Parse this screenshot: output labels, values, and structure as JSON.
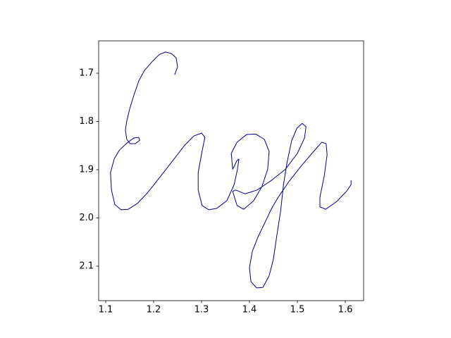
{
  "chart_data": {
    "type": "line",
    "color": "#00008b",
    "x": [
      1.244,
      1.25,
      1.247,
      1.237,
      1.225,
      1.212,
      1.196,
      1.181,
      1.169,
      1.159,
      1.15,
      1.144,
      1.141,
      1.144,
      1.151,
      1.162,
      1.171,
      1.169,
      1.159,
      1.144,
      1.129,
      1.118,
      1.11,
      1.112,
      1.119,
      1.132,
      1.147,
      1.166,
      1.188,
      1.215,
      1.24,
      1.265,
      1.284,
      1.3,
      1.307,
      1.301,
      1.293,
      1.293,
      1.301,
      1.315,
      1.332,
      1.353,
      1.368,
      1.375,
      1.378,
      1.374,
      1.365,
      1.362,
      1.374,
      1.394,
      1.413,
      1.431,
      1.441,
      1.438,
      1.426,
      1.409,
      1.388,
      1.374,
      1.365,
      1.371,
      1.391,
      1.416,
      1.446,
      1.475,
      1.5,
      1.515,
      1.518,
      1.51,
      1.499,
      1.488,
      1.478,
      1.471,
      1.465,
      1.457,
      1.45,
      1.441,
      1.428,
      1.415,
      1.403,
      1.4,
      1.406,
      1.418,
      1.432,
      1.447,
      1.46,
      1.482,
      1.509,
      1.534,
      1.551,
      1.56,
      1.562,
      1.556,
      1.547,
      1.547,
      1.559,
      1.582,
      1.603,
      1.612,
      1.612
    ],
    "values": [
      1.703,
      1.687,
      1.668,
      1.659,
      1.656,
      1.661,
      1.677,
      1.694,
      1.716,
      1.745,
      1.774,
      1.799,
      1.818,
      1.837,
      1.846,
      1.846,
      1.839,
      1.833,
      1.834,
      1.845,
      1.859,
      1.877,
      1.906,
      1.942,
      1.972,
      1.983,
      1.982,
      1.97,
      1.947,
      1.913,
      1.881,
      1.849,
      1.83,
      1.824,
      1.833,
      1.862,
      1.906,
      1.942,
      1.974,
      1.983,
      1.98,
      1.964,
      1.931,
      1.899,
      1.878,
      1.881,
      1.899,
      1.866,
      1.843,
      1.827,
      1.826,
      1.837,
      1.862,
      1.899,
      1.935,
      1.964,
      1.982,
      1.974,
      1.945,
      1.942,
      1.95,
      1.942,
      1.922,
      1.899,
      1.866,
      1.834,
      1.811,
      1.804,
      1.814,
      1.84,
      1.887,
      1.931,
      1.986,
      2.037,
      2.085,
      2.12,
      2.144,
      2.145,
      2.132,
      2.103,
      2.069,
      2.039,
      2.01,
      1.979,
      1.957,
      1.925,
      1.891,
      1.862,
      1.843,
      1.846,
      1.869,
      1.913,
      1.957,
      1.977,
      1.982,
      1.966,
      1.944,
      1.931,
      1.922
    ],
    "xlim": [
      1.0853,
      1.6382
    ],
    "ylim": [
      2.1715,
      1.6328
    ],
    "xticks": [
      1.1,
      1.2,
      1.3,
      1.4,
      1.5,
      1.6
    ],
    "yticks": [
      1.7,
      1.8,
      1.9,
      {
        "value": 2,
        "label": "2.0"
      },
      2.1
    ]
  }
}
